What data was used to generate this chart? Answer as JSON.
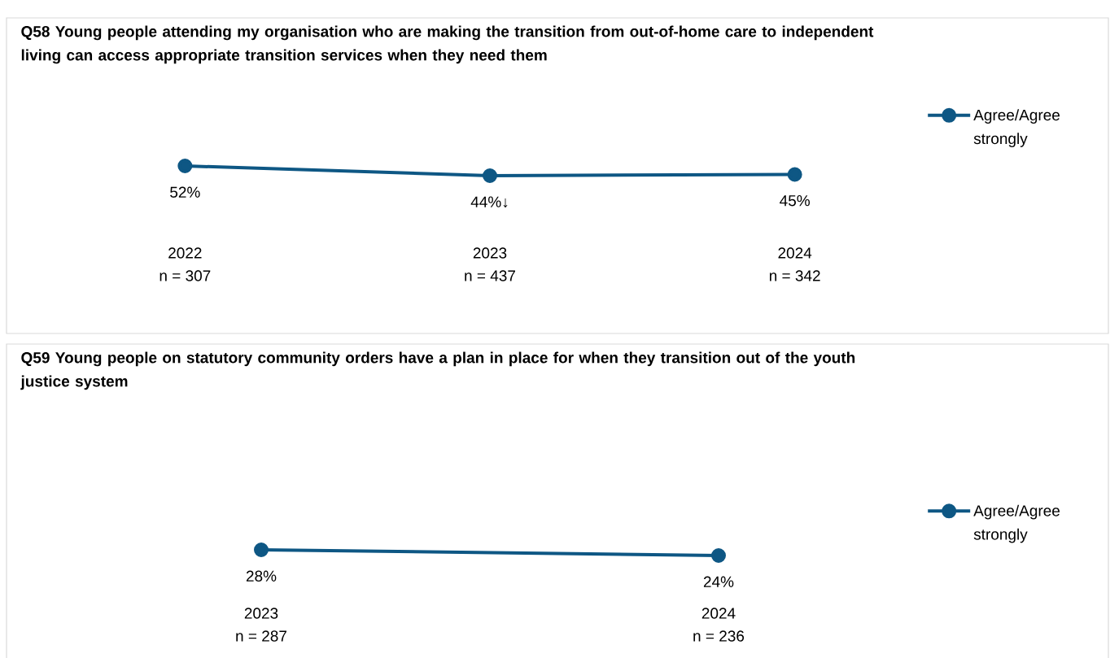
{
  "chart_data": [
    {
      "type": "line",
      "title": "Q58 Young people attending my organisation who are making the transition from out-of-home care to independent living can access appropriate transition services when they need them",
      "categories": [
        "2022",
        "2023",
        "2024"
      ],
      "series": [
        {
          "name": "Agree/Agree strongly",
          "color": "#0e5784",
          "values": [
            52,
            44,
            45
          ],
          "value_labels": [
            "52%",
            "44%↓",
            "45%"
          ]
        }
      ],
      "annotations": [
        "n = 307",
        "n = 437",
        "n = 342"
      ],
      "marker": "circle",
      "line_style": "solid",
      "legend": "right"
    },
    {
      "type": "line",
      "title": "Q59 Young people on statutory community orders have a plan in place for when they transition out of the youth justice system",
      "categories": [
        "2023",
        "2024"
      ],
      "series": [
        {
          "name": "Agree/Agree strongly",
          "color": "#0e5784",
          "values": [
            28,
            24
          ],
          "value_labels": [
            "28%",
            "24%"
          ]
        }
      ],
      "annotations": [
        "n = 287",
        "n = 236"
      ],
      "marker": "circle",
      "line_style": "solid",
      "legend": "right"
    }
  ]
}
